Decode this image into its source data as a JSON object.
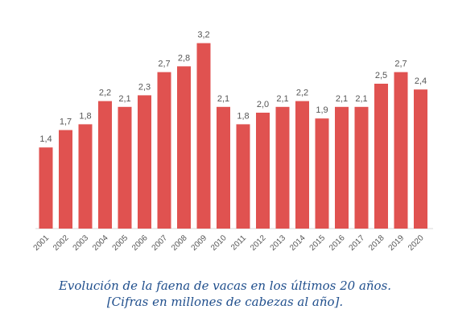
{
  "chart_data": {
    "type": "bar",
    "categories": [
      "2001",
      "2002",
      "2003",
      "2004",
      "2005",
      "2006",
      "2007",
      "2008",
      "2009",
      "2010",
      "2011",
      "2012",
      "2013",
      "2014",
      "2015",
      "2016",
      "2017",
      "2018",
      "2019",
      "2020"
    ],
    "values": [
      1.4,
      1.7,
      1.8,
      2.2,
      2.1,
      2.3,
      2.7,
      2.8,
      3.2,
      2.1,
      1.8,
      2.0,
      2.1,
      2.2,
      1.9,
      2.1,
      2.1,
      2.5,
      2.7,
      2.4
    ],
    "value_labels": [
      "1,4",
      "1,7",
      "1,8",
      "2,2",
      "2,1",
      "2,3",
      "2,7",
      "2,8",
      "3,2",
      "2,1",
      "1,8",
      "2,0",
      "2,1",
      "2,2",
      "1,9",
      "2,1",
      "2,1",
      "2,5",
      "2,7",
      "2,4"
    ],
    "bar_color": "#e05250",
    "grid": false,
    "legend": "none"
  },
  "caption": {
    "line1": "Evolución de la faena de vacas en los últimos 20 años.",
    "line2": "[Cifras en millones de cabezas al año]."
  }
}
